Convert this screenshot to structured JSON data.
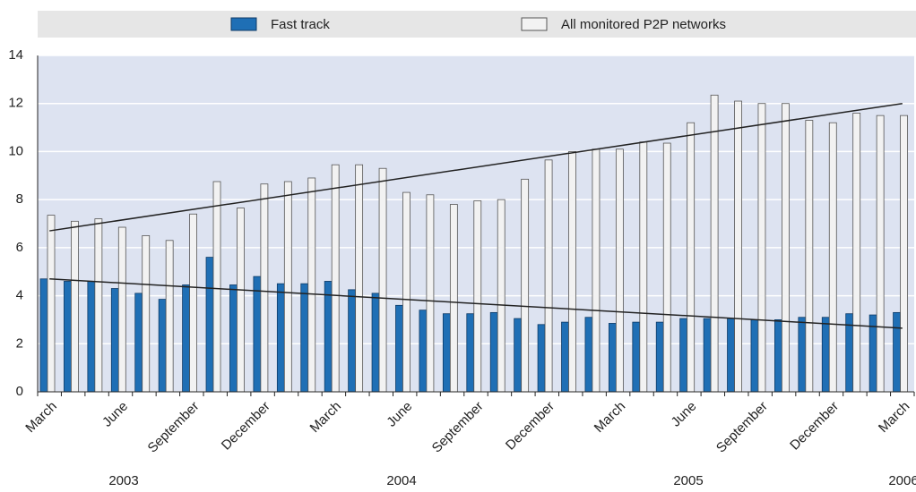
{
  "chart_data": {
    "type": "bar",
    "categories": [
      "March",
      null,
      null,
      "June",
      null,
      null,
      "September",
      null,
      null,
      "December",
      null,
      null,
      "March",
      null,
      null,
      "June",
      null,
      null,
      "September",
      null,
      null,
      "December",
      null,
      null,
      "March",
      null,
      null,
      "June",
      null,
      null,
      "September",
      null,
      null,
      "December",
      null,
      null,
      "March"
    ],
    "series": [
      {
        "name": "Fast track",
        "color": "#1f6fb5",
        "trend": [
          4.7,
          2.65
        ],
        "values": [
          4.7,
          4.6,
          4.6,
          4.3,
          4.1,
          3.85,
          4.45,
          5.6,
          4.45,
          4.8,
          4.5,
          4.5,
          4.6,
          4.25,
          4.1,
          3.6,
          3.4,
          3.25,
          3.25,
          3.3,
          3.05,
          2.8,
          2.9,
          3.1,
          2.85,
          2.9,
          2.9,
          3.05,
          3.05,
          3.05,
          3.0,
          3.0,
          3.1,
          3.1,
          3.25,
          3.2,
          3.3
        ]
      },
      {
        "name": "All monitored P2P networks",
        "color": "#f2f2f2",
        "trend": [
          6.7,
          12.0
        ],
        "values": [
          7.35,
          7.1,
          7.2,
          6.85,
          6.5,
          6.3,
          7.4,
          8.75,
          7.65,
          8.65,
          8.75,
          8.9,
          9.45,
          9.45,
          9.3,
          8.3,
          8.2,
          7.8,
          7.95,
          8.0,
          8.85,
          9.65,
          10.0,
          10.1,
          10.1,
          10.4,
          10.35,
          11.2,
          12.35,
          12.1,
          12.0,
          12.0,
          11.3,
          11.2,
          11.6,
          11.5,
          11.5
        ]
      }
    ],
    "years": [
      "2003",
      "2004",
      "2005",
      "2006"
    ],
    "ylim": [
      0,
      14
    ],
    "yticks": [
      0,
      2,
      4,
      6,
      8,
      10,
      12,
      14
    ],
    "grid": true,
    "legend": "top"
  }
}
